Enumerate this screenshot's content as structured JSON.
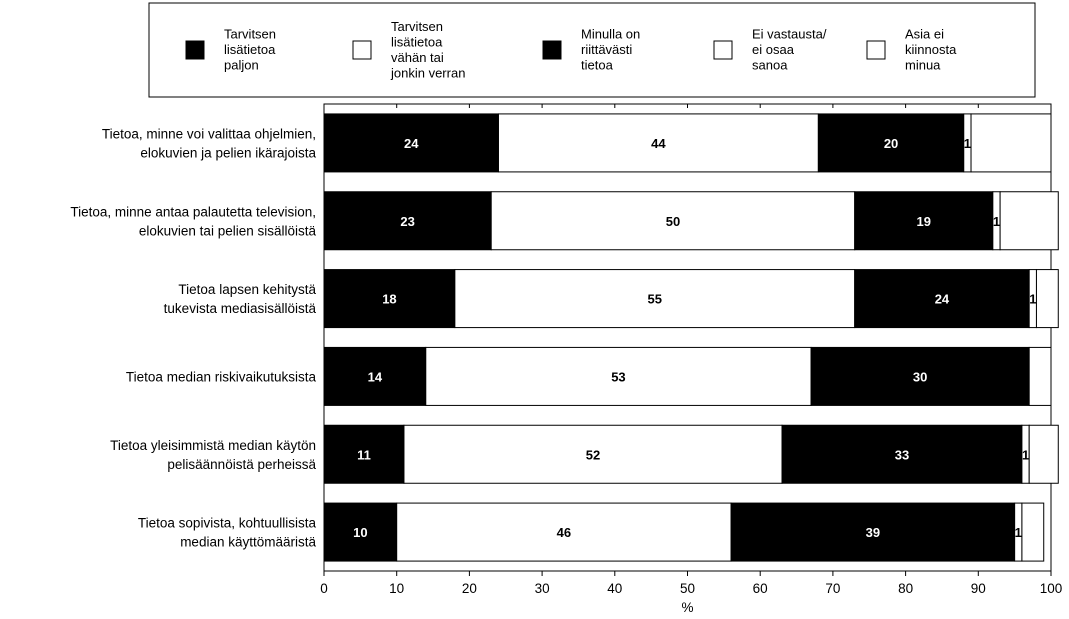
{
  "chart_data": {
    "type": "bar",
    "orientation": "horizontal",
    "stacked": true,
    "xlabel": "%",
    "xlim": [
      0,
      100
    ],
    "xticks": [
      "0",
      "10",
      "20",
      "30",
      "40",
      "50",
      "60",
      "70",
      "80",
      "90",
      "100"
    ],
    "grid": false,
    "legend_position": "top",
    "categories": [
      [
        "Tietoa, minne voi valittaa ohjelmien,",
        "elokuvien ja pelien ikärajoista"
      ],
      [
        "Tietoa, minne antaa palautetta television,",
        "elokuvien tai pelien sisällöistä"
      ],
      [
        "Tietoa lapsen kehitystä",
        "tukevista mediasisällöistä"
      ],
      [
        "Tietoa median riskivaikutuksista"
      ],
      [
        "Tietoa yleisimmistä median käytön",
        "pelisäännöistä perheissä"
      ],
      [
        "Tietoa sopivista, kohtuullisista",
        "median käyttömääristä"
      ]
    ],
    "series": [
      {
        "name": [
          "Tarvitsen",
          "lisätietoa",
          "paljon"
        ],
        "color": "#000000",
        "label_color": "#ffffff",
        "values": [
          24,
          23,
          18,
          14,
          11,
          10
        ],
        "labels": [
          "24",
          "23",
          "18",
          "14",
          "11",
          "10"
        ]
      },
      {
        "name": [
          "Tarvitsen",
          "lisätietoa",
          "vähän tai",
          "jonkin verran"
        ],
        "color": "#ffffff",
        "label_color": "#000000",
        "values": [
          44,
          50,
          55,
          53,
          52,
          46
        ],
        "labels": [
          "44",
          "50",
          "55",
          "53",
          "52",
          "46"
        ]
      },
      {
        "name": [
          "Minulla on",
          "riittävästi",
          "tietoa"
        ],
        "color": "#000000",
        "label_color": "#ffffff",
        "values": [
          20,
          19,
          24,
          30,
          33,
          39
        ],
        "labels": [
          "20",
          "19",
          "24",
          "30",
          "33",
          "39"
        ]
      },
      {
        "name": [
          "Ei vastausta/",
          "ei osaa",
          "sanoa"
        ],
        "color": "#ffffff",
        "label_color": "#000000",
        "values": [
          1,
          1,
          1,
          0,
          1,
          1
        ],
        "labels": [
          "1",
          "1",
          "1",
          "",
          "1",
          "1"
        ]
      },
      {
        "name": [
          "Asia ei",
          "kiinnosta",
          "minua"
        ],
        "color": "#ffffff",
        "label_color": "#000000",
        "values": [
          11,
          8,
          3,
          3,
          4,
          3
        ],
        "labels": [
          "",
          "",
          "",
          "",
          "",
          ""
        ]
      }
    ]
  }
}
